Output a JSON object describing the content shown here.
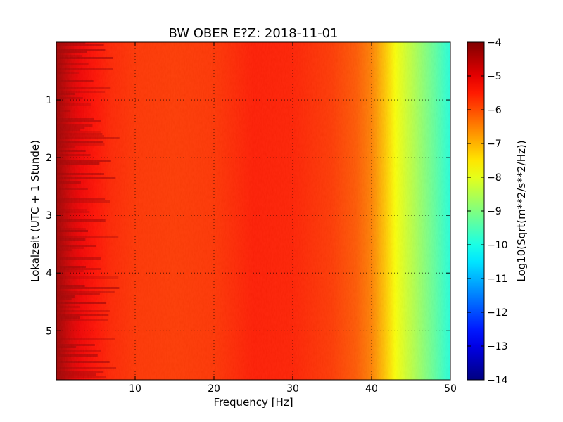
{
  "chart_data": {
    "type": "heatmap",
    "title": "BW OBER E?Z: 2018-11-01",
    "xlabel": "Frequency [Hz]",
    "ylabel": "Lokalzeit (UTC + 1 Stunde)",
    "xlim": [
      0,
      50
    ],
    "ylim": [
      5.85,
      0
    ],
    "y_axis_inverted": true,
    "xticks": [
      10,
      20,
      30,
      40,
      50
    ],
    "yticks": [
      1,
      2,
      3,
      4,
      5
    ],
    "grid": true,
    "grid_style": "dotted",
    "colormap": "jet",
    "colorbar": {
      "label": "Log10(Sqrt(m**2/s**2/Hz))",
      "min": -14,
      "max": -4,
      "ticks": [
        -4,
        -5,
        -6,
        -7,
        -8,
        -9,
        -10,
        -11,
        -12,
        -13,
        -14
      ]
    },
    "frequency_profile": {
      "frequency_hz": [
        0,
        1,
        2,
        3,
        5,
        7,
        10,
        15,
        20,
        25,
        30,
        35,
        38,
        40,
        41,
        42,
        43,
        44,
        45,
        46,
        47,
        48,
        49,
        50
      ],
      "value_log10": [
        -4.3,
        -4.6,
        -4.9,
        -5.1,
        -5.4,
        -5.6,
        -5.75,
        -5.8,
        -5.75,
        -5.5,
        -5.55,
        -5.8,
        -6.1,
        -6.5,
        -6.9,
        -7.3,
        -7.8,
        -8.1,
        -8.4,
        -8.7,
        -9.0,
        -9.3,
        -9.6,
        -9.9
      ]
    },
    "colors": {
      "axes": "#000000",
      "background": "#ffffff"
    }
  }
}
